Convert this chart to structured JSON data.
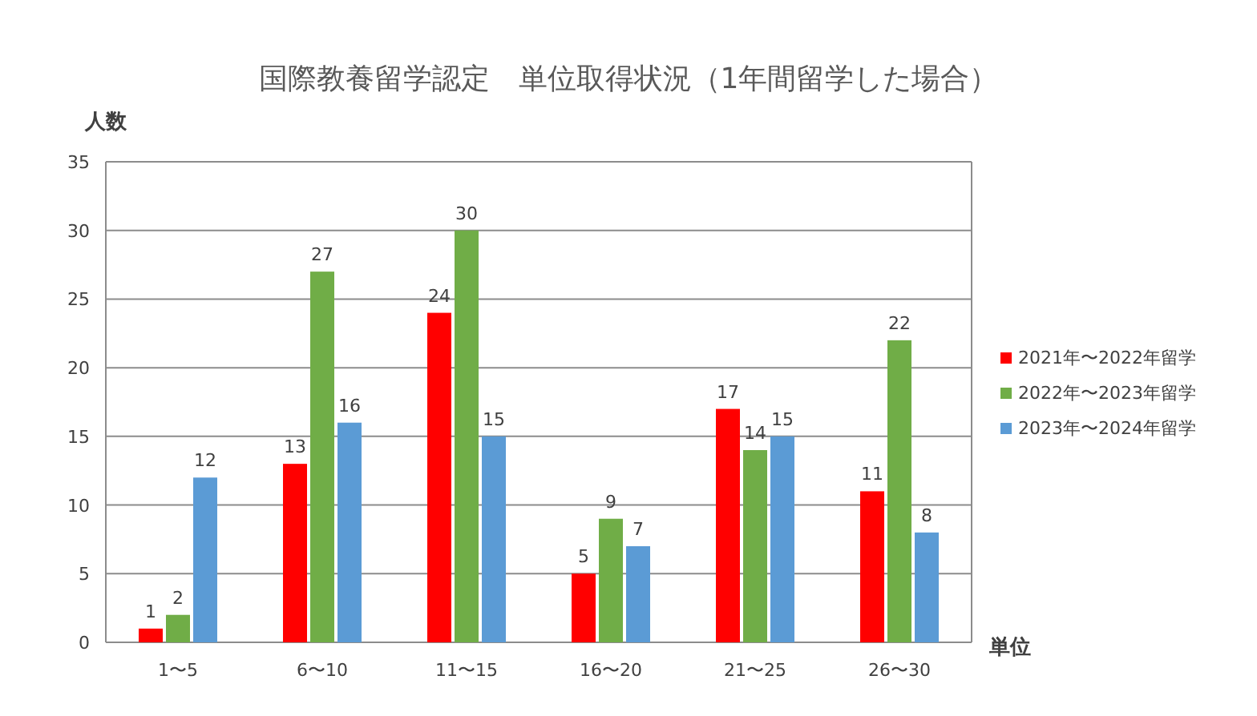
{
  "chart_data": {
    "type": "bar",
    "title": "国際教養留学認定　単位取得状況（1年間留学した場合）",
    "ylabel": "人数",
    "xlabel": "単位",
    "categories": [
      "1〜5",
      "6〜10",
      "11〜15",
      "16〜20",
      "21〜25",
      "26〜30"
    ],
    "series": [
      {
        "name": "2021年〜2022年留学",
        "color": "#ff0000",
        "values": [
          1,
          13,
          24,
          5,
          17,
          11
        ]
      },
      {
        "name": "2022年〜2023年留学",
        "color": "#70ad47",
        "values": [
          2,
          27,
          30,
          9,
          14,
          22
        ]
      },
      {
        "name": "2023年〜2024年留学",
        "color": "#5b9bd5",
        "values": [
          12,
          16,
          15,
          7,
          15,
          8
        ]
      }
    ],
    "ylim": [
      0,
      35
    ],
    "yticks": [
      0,
      5,
      10,
      15,
      20,
      25,
      30,
      35
    ],
    "grid": "y",
    "legend": "right",
    "data_labels": true
  }
}
